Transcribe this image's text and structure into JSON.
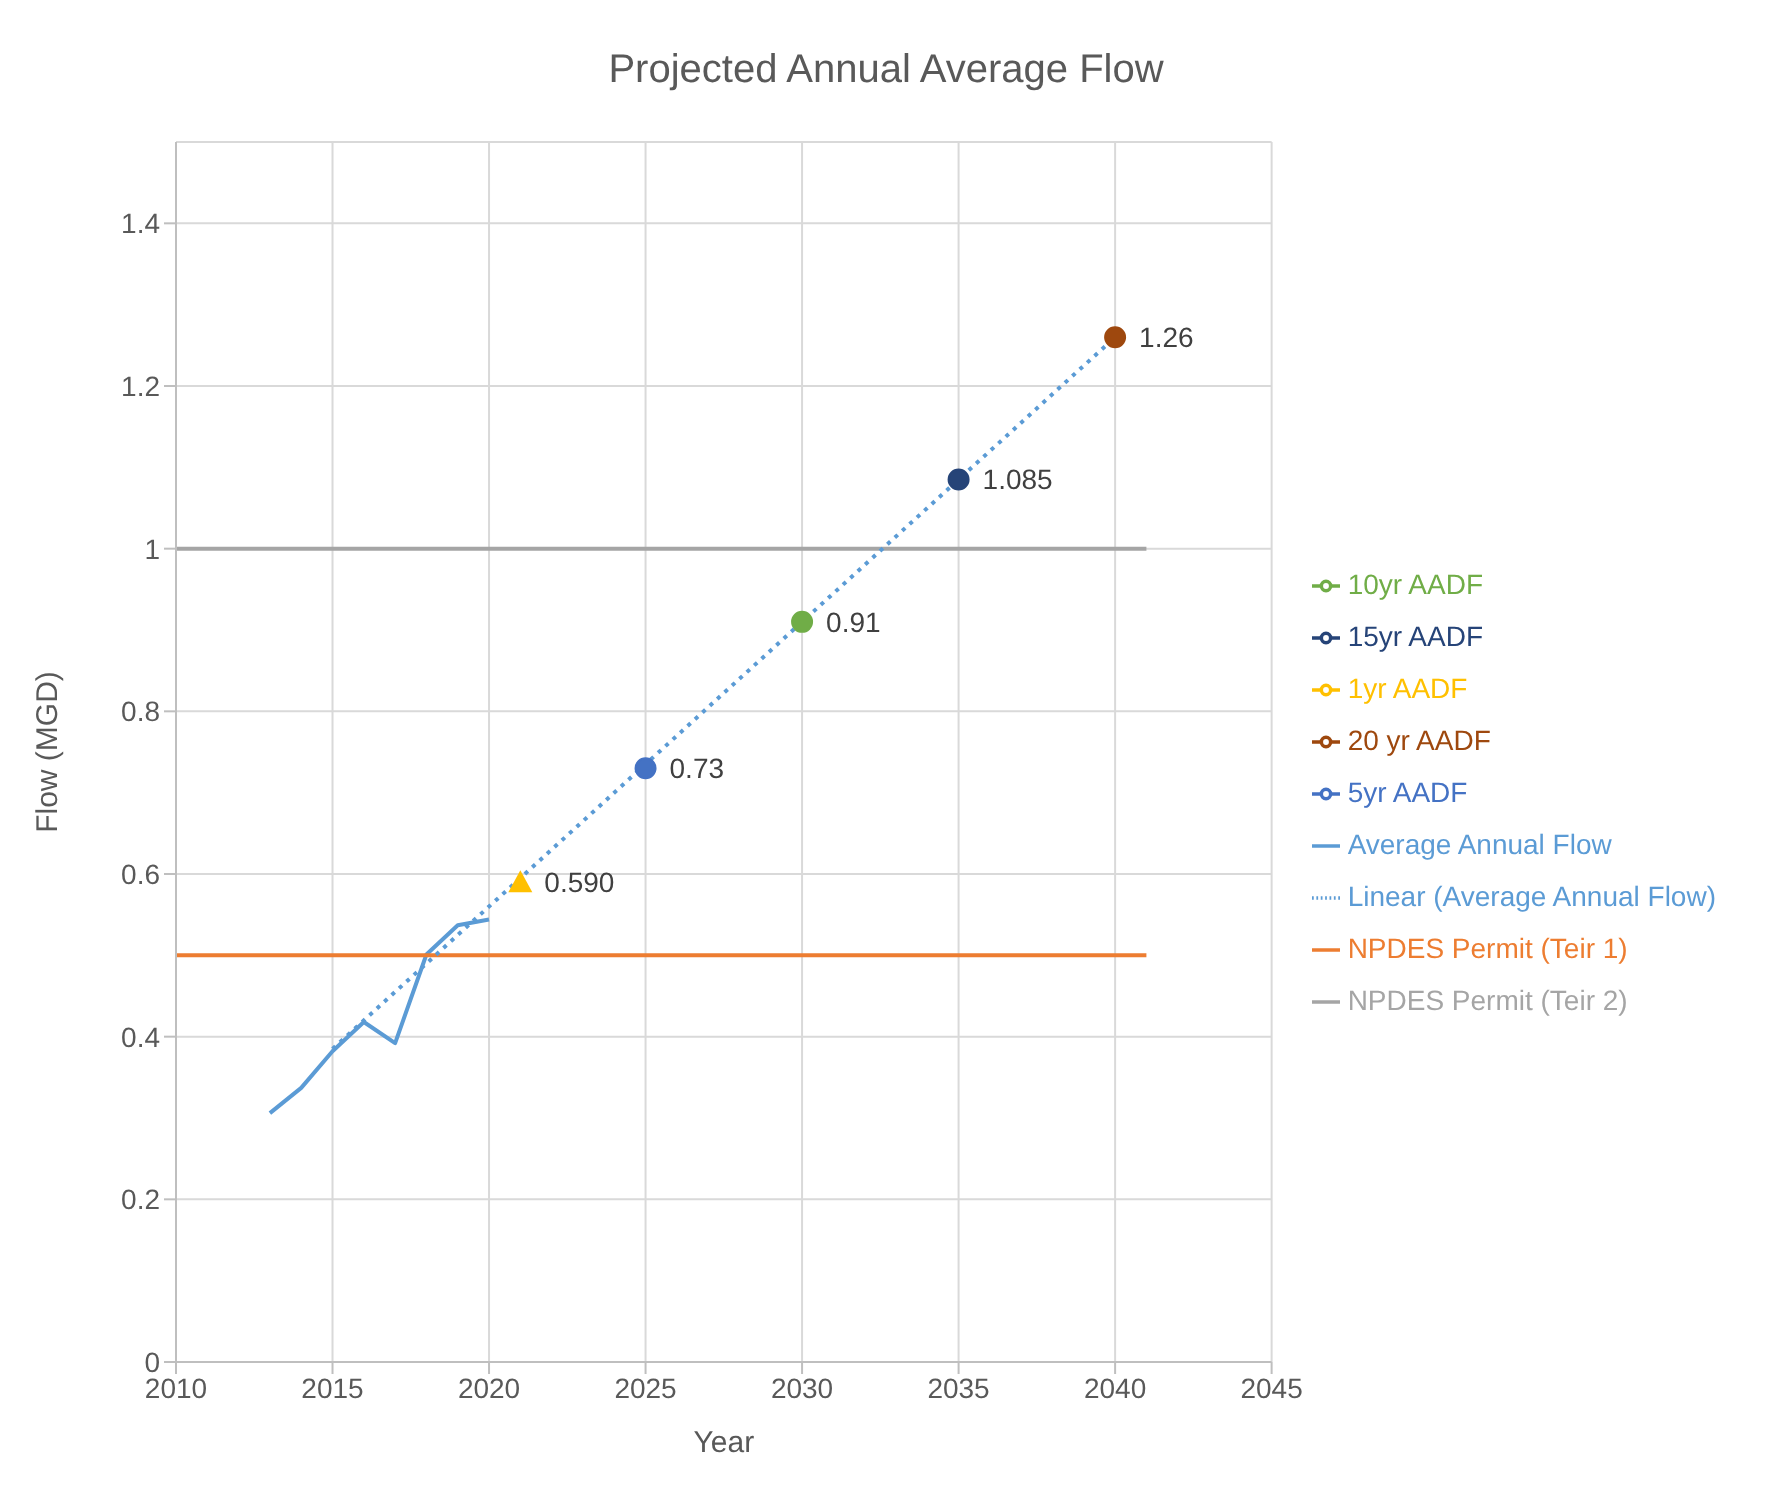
{
  "chart_data": {
    "type": "line",
    "title": "Projected Annual Average Flow",
    "xlabel": "Year",
    "ylabel": "Flow (MGD)",
    "xlim": [
      2010,
      2045
    ],
    "xticks": [
      2010,
      2015,
      2020,
      2025,
      2030,
      2035,
      2040,
      2045
    ],
    "ylim": [
      0,
      1.5
    ],
    "yticks": [
      0,
      0.2,
      0.4,
      0.6,
      0.8,
      1,
      1.2,
      1.4
    ],
    "grid": true,
    "legend": "right",
    "marker": "none",
    "series": [
      {
        "name": "Average Annual Flow",
        "color": "#5b9bd5",
        "x": [
          2013,
          2014,
          2015,
          2016,
          2017,
          2018,
          2019,
          2020
        ],
        "values": [
          0.306,
          0.337,
          0.382,
          0.418,
          0.392,
          0.501,
          0.537,
          0.544
        ]
      },
      {
        "name": "NPDES Permit (Teir 1)",
        "color": "#ed7d31",
        "x": [
          2010,
          2041
        ],
        "values": [
          0.5,
          0.5
        ]
      },
      {
        "name": "NPDES Permit (Teir 2)",
        "color": "#a5a5a5",
        "x": [
          2010,
          2041
        ],
        "values": [
          1,
          1
        ]
      },
      {
        "name": "1yr AADF",
        "color": "#ffc000",
        "marker": "triangle",
        "x": [
          2021
        ],
        "values": [
          0.59
        ],
        "value_labels": [
          "0.590"
        ]
      },
      {
        "name": "5yr AADF",
        "color": "#4472c4",
        "marker": "circle",
        "x": [
          2025
        ],
        "values": [
          0.73
        ],
        "value_labels": [
          "0.73"
        ]
      },
      {
        "name": "10yr AADF",
        "color": "#70ad47",
        "marker": "circle",
        "x": [
          2030
        ],
        "values": [
          0.91
        ],
        "value_labels": [
          "0.91"
        ]
      },
      {
        "name": "15yr AADF",
        "color": "#264478",
        "marker": "circle",
        "x": [
          2035
        ],
        "values": [
          1.085
        ],
        "value_labels": [
          "1.085"
        ]
      },
      {
        "name": "20 yr AADF",
        "color": "#9e480e",
        "marker": "circle",
        "x": [
          2040
        ],
        "values": [
          1.26
        ],
        "value_labels": [
          "1.26"
        ]
      },
      {
        "name": "Linear (Average Annual Flow)",
        "color": "#5b9bd5",
        "line_style": "dotted",
        "x": [
          2015,
          2040
        ],
        "values": [
          0.385,
          1.26
        ]
      }
    ]
  }
}
